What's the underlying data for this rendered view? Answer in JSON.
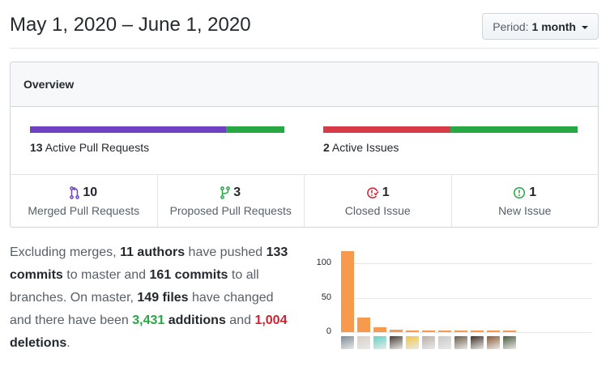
{
  "header": {
    "title": "May 1, 2020 – June 1, 2020",
    "period_prefix": "Period:",
    "period_value": "1 month"
  },
  "overview": {
    "title": "Overview",
    "pull_requests": {
      "count": "13",
      "label": "Active Pull Requests",
      "bar": [
        {
          "value": 10,
          "color": "#6f42c1",
          "meaning": "merged"
        },
        {
          "value": 3,
          "color": "#28a745",
          "meaning": "open"
        }
      ]
    },
    "issues": {
      "count": "2",
      "label": "Active Issues",
      "bar": [
        {
          "value": 1,
          "color": "#d73a49",
          "meaning": "closed"
        },
        {
          "value": 1,
          "color": "#28a745",
          "meaning": "new"
        }
      ]
    },
    "stats": [
      {
        "icon": "git-merge-icon",
        "count": "10",
        "label": "Merged Pull Requests",
        "color": "#6f42c1"
      },
      {
        "icon": "git-pull-request-icon",
        "count": "3",
        "label": "Proposed Pull Requests",
        "color": "#28a745"
      },
      {
        "icon": "issue-closed-icon",
        "count": "1",
        "label": "Closed Issue",
        "color": "#cb2431"
      },
      {
        "icon": "issue-opened-icon",
        "count": "1",
        "label": "New Issue",
        "color": "#28a745"
      }
    ]
  },
  "commits_summary": {
    "t1": "Excluding merges, ",
    "authors": "11 authors",
    "t2": " have pushed ",
    "master_commits": "133 commits",
    "t3": " to master and ",
    "all_commits": "161 commits",
    "t4": " to all branches. On master, ",
    "files": "149 files",
    "t5": " have changed and there have been ",
    "additions_num": "3,431",
    "additions_word": " additions",
    "t6": " and ",
    "deletions_num": "1,004",
    "deletions_word": " deletions",
    "t7": "."
  },
  "chart_data": {
    "type": "bar",
    "title": "",
    "xlabel": "",
    "ylabel": "",
    "categories": [
      "author-1",
      "author-2",
      "author-3",
      "author-4",
      "author-5",
      "author-6",
      "author-7",
      "author-8",
      "author-9",
      "author-10",
      "author-11"
    ],
    "values": [
      118,
      21,
      7,
      3,
      2,
      2,
      2,
      2,
      2,
      1,
      1
    ],
    "yticks": [
      "0",
      "50",
      "100"
    ],
    "ylim": [
      0,
      125
    ],
    "grid": true,
    "legend": "none",
    "bar_color": "#f79a4d",
    "x_tick_style": "avatar images"
  }
}
